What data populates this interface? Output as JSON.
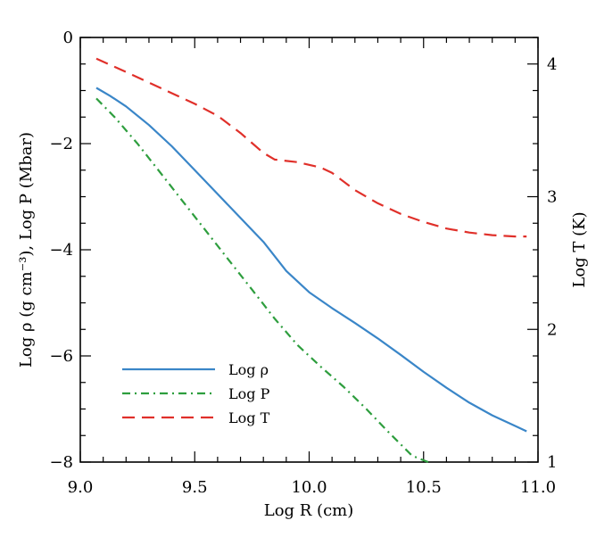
{
  "chart_data": {
    "type": "line",
    "xlabel": "Log R (cm)",
    "ylabel_left": "Log ρ (g cm⁻³),  Log P (Mbar)",
    "ylabel_right": "Log T (K)",
    "xlim": [
      9.0,
      11.0
    ],
    "ylim_left": [
      -8,
      0
    ],
    "ylim_right": [
      1,
      4.2
    ],
    "xticks": [
      9.0,
      9.5,
      10.0,
      10.5,
      11.0
    ],
    "xtick_labels": [
      "9.0",
      "9.5",
      "10.0",
      "10.5",
      "11.0"
    ],
    "yticks_left": [
      0,
      -2,
      -4,
      -6,
      -8
    ],
    "ytick_labels_left": [
      "0",
      "−2",
      "−4",
      "−6",
      "−8"
    ],
    "yticks_right": [
      1,
      2,
      3,
      4
    ],
    "ytick_labels_right": [
      "1",
      "2",
      "3",
      "4"
    ],
    "legend_position": "lower-left",
    "grid": false,
    "series": [
      {
        "name": "Log ρ",
        "axis": "left",
        "color": "#3a86c8",
        "dash": "solid",
        "x": [
          9.07,
          9.13,
          9.2,
          9.3,
          9.4,
          9.5,
          9.6,
          9.7,
          9.8,
          9.9,
          10.0,
          10.1,
          10.2,
          10.3,
          10.4,
          10.5,
          10.6,
          10.7,
          10.8,
          10.9,
          10.95
        ],
        "y": [
          -0.95,
          -1.1,
          -1.3,
          -1.65,
          -2.05,
          -2.5,
          -2.95,
          -3.4,
          -3.85,
          -4.4,
          -4.8,
          -5.1,
          -5.38,
          -5.67,
          -5.98,
          -6.3,
          -6.6,
          -6.88,
          -7.12,
          -7.32,
          -7.42
        ]
      },
      {
        "name": "Log P",
        "axis": "left",
        "color": "#2e9e3e",
        "dash": "dashdot",
        "x": [
          9.07,
          9.15,
          9.25,
          9.35,
          9.45,
          9.55,
          9.65,
          9.75,
          9.85,
          9.95,
          10.05,
          10.15,
          10.25,
          10.35,
          10.45,
          10.52
        ],
        "y": [
          -1.15,
          -1.5,
          -2.0,
          -2.55,
          -3.1,
          -3.65,
          -4.2,
          -4.75,
          -5.3,
          -5.8,
          -6.2,
          -6.58,
          -7.0,
          -7.45,
          -7.88,
          -8.0
        ]
      },
      {
        "name": "Log T",
        "axis": "right",
        "color": "#e0302a",
        "dash": "dashed",
        "x": [
          9.07,
          9.2,
          9.3,
          9.4,
          9.5,
          9.6,
          9.7,
          9.8,
          9.85,
          9.95,
          10.05,
          10.1,
          10.2,
          10.3,
          10.4,
          10.5,
          10.6,
          10.7,
          10.8,
          10.9,
          10.95
        ],
        "y": [
          4.04,
          3.94,
          3.86,
          3.78,
          3.7,
          3.61,
          3.48,
          3.33,
          3.28,
          3.26,
          3.22,
          3.18,
          3.05,
          2.95,
          2.87,
          2.81,
          2.76,
          2.73,
          2.71,
          2.7,
          2.7
        ]
      }
    ]
  }
}
